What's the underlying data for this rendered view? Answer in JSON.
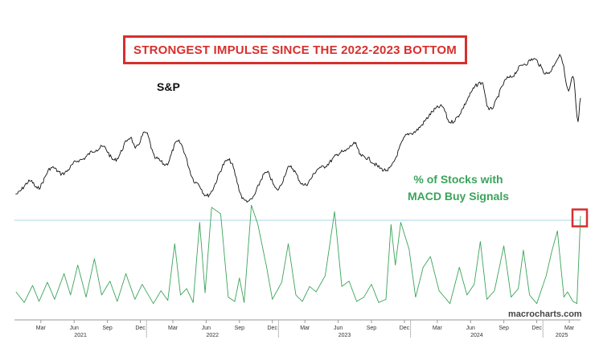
{
  "header": {
    "banner": "STRONGEST IMPULSE SINCE THE 2022-2023 BOTTOM",
    "sp_label": "S&P",
    "macd_label_line1": "% of Stocks with",
    "macd_label_line2": "MACD Buy Signals",
    "watermark": "macrocharts.com"
  },
  "colors": {
    "banner": "#d6302d",
    "sp_line": "#111111",
    "macd_line": "#3aa45a",
    "reference_line": "#a8d4ee",
    "highlight_box": "#d6302d"
  },
  "chart_data": [
    {
      "type": "line",
      "title": "S&P",
      "x_axis": "date",
      "xlim": [
        "2021-01-01",
        "2025-04-15"
      ],
      "ylim": [
        3550,
        6250
      ],
      "series": [
        {
          "name": "S&P",
          "points": [
            [
              "2021-01-04",
              3700
            ],
            [
              "2021-02-15",
              3930
            ],
            [
              "2021-03-05",
              3800
            ],
            [
              "2021-04-15",
              4170
            ],
            [
              "2021-05-12",
              4060
            ],
            [
              "2021-06-30",
              4300
            ],
            [
              "2021-08-15",
              4480
            ],
            [
              "2021-09-02",
              4540
            ],
            [
              "2021-10-04",
              4300
            ],
            [
              "2021-11-18",
              4700
            ],
            [
              "2021-12-01",
              4510
            ],
            [
              "2021-12-29",
              4790
            ],
            [
              "2022-01-27",
              4330
            ],
            [
              "2022-02-23",
              4220
            ],
            [
              "2022-03-29",
              4630
            ],
            [
              "2022-05-20",
              3900
            ],
            [
              "2022-06-16",
              3670
            ],
            [
              "2022-08-16",
              4300
            ],
            [
              "2022-09-30",
              3590
            ],
            [
              "2022-10-12",
              3580
            ],
            [
              "2022-11-30",
              4080
            ],
            [
              "2022-12-28",
              3780
            ],
            [
              "2023-02-02",
              4180
            ],
            [
              "2023-03-13",
              3860
            ],
            [
              "2023-04-28",
              4170
            ],
            [
              "2023-06-30",
              4450
            ],
            [
              "2023-07-31",
              4590
            ],
            [
              "2023-08-18",
              4370
            ],
            [
              "2023-10-27",
              4120
            ],
            [
              "2023-12-29",
              4770
            ],
            [
              "2024-03-28",
              5250
            ],
            [
              "2024-04-19",
              4970
            ],
            [
              "2024-07-16",
              5670
            ],
            [
              "2024-08-05",
              5190
            ],
            [
              "2024-09-30",
              5760
            ],
            [
              "2024-11-11",
              6000
            ],
            [
              "2024-12-06",
              6090
            ],
            [
              "2025-01-13",
              5830
            ],
            [
              "2025-02-19",
              6140
            ],
            [
              "2025-03-13",
              5520
            ],
            [
              "2025-03-25",
              5780
            ],
            [
              "2025-04-08",
              4980
            ],
            [
              "2025-04-15",
              5400
            ]
          ]
        }
      ]
    },
    {
      "type": "line",
      "title": "% of Stocks with MACD Buy Signals",
      "x_axis": "date",
      "xlim": [
        "2021-01-01",
        "2025-04-15"
      ],
      "ylim": [
        0,
        100
      ],
      "reference_line": 82,
      "series": [
        {
          "name": "% of Stocks with MACD Buy Signals",
          "points": [
            [
              "2021-01-05",
              15
            ],
            [
              "2021-01-28",
              5
            ],
            [
              "2021-02-20",
              21
            ],
            [
              "2021-03-10",
              6
            ],
            [
              "2021-04-02",
              24
            ],
            [
              "2021-04-22",
              8
            ],
            [
              "2021-05-18",
              32
            ],
            [
              "2021-06-05",
              12
            ],
            [
              "2021-06-25",
              40
            ],
            [
              "2021-07-18",
              10
            ],
            [
              "2021-08-10",
              46
            ],
            [
              "2021-08-30",
              12
            ],
            [
              "2021-09-22",
              25
            ],
            [
              "2021-10-12",
              6
            ],
            [
              "2021-11-05",
              32
            ],
            [
              "2021-11-30",
              8
            ],
            [
              "2021-12-20",
              22
            ],
            [
              "2022-01-20",
              4
            ],
            [
              "2022-02-10",
              16
            ],
            [
              "2022-03-01",
              7
            ],
            [
              "2022-03-20",
              60
            ],
            [
              "2022-04-05",
              12
            ],
            [
              "2022-04-22",
              18
            ],
            [
              "2022-05-10",
              5
            ],
            [
              "2022-05-28",
              80
            ],
            [
              "2022-06-12",
              14
            ],
            [
              "2022-06-30",
              94
            ],
            [
              "2022-07-25",
              88
            ],
            [
              "2022-08-15",
              10
            ],
            [
              "2022-09-02",
              6
            ],
            [
              "2022-09-15",
              28
            ],
            [
              "2022-09-28",
              5
            ],
            [
              "2022-10-18",
              96
            ],
            [
              "2022-11-05",
              78
            ],
            [
              "2022-11-28",
              40
            ],
            [
              "2022-12-15",
              8
            ],
            [
              "2023-01-10",
              24
            ],
            [
              "2023-01-28",
              60
            ],
            [
              "2023-02-18",
              12
            ],
            [
              "2023-03-08",
              6
            ],
            [
              "2023-03-28",
              20
            ],
            [
              "2023-04-15",
              15
            ],
            [
              "2023-05-10",
              30
            ],
            [
              "2023-06-05",
              90
            ],
            [
              "2023-06-25",
              20
            ],
            [
              "2023-07-15",
              25
            ],
            [
              "2023-08-05",
              6
            ],
            [
              "2023-08-25",
              10
            ],
            [
              "2023-09-15",
              22
            ],
            [
              "2023-10-05",
              5
            ],
            [
              "2023-10-25",
              8
            ],
            [
              "2023-11-08",
              78
            ],
            [
              "2023-11-20",
              40
            ],
            [
              "2023-12-05",
              80
            ],
            [
              "2023-12-28",
              55
            ],
            [
              "2024-01-15",
              10
            ],
            [
              "2024-02-05",
              38
            ],
            [
              "2024-02-25",
              48
            ],
            [
              "2024-03-20",
              16
            ],
            [
              "2024-04-19",
              4
            ],
            [
              "2024-05-15",
              38
            ],
            [
              "2024-06-05",
              12
            ],
            [
              "2024-06-25",
              22
            ],
            [
              "2024-07-12",
              62
            ],
            [
              "2024-07-30",
              8
            ],
            [
              "2024-08-20",
              16
            ],
            [
              "2024-09-15",
              58
            ],
            [
              "2024-10-05",
              10
            ],
            [
              "2024-10-25",
              18
            ],
            [
              "2024-11-08",
              54
            ],
            [
              "2024-11-25",
              12
            ],
            [
              "2024-12-15",
              4
            ],
            [
              "2025-01-10",
              30
            ],
            [
              "2025-01-25",
              52
            ],
            [
              "2025-02-10",
              72
            ],
            [
              "2025-02-28",
              10
            ],
            [
              "2025-03-10",
              15
            ],
            [
              "2025-03-25",
              6
            ],
            [
              "2025-04-05",
              4
            ],
            [
              "2025-04-15",
              86
            ]
          ]
        }
      ]
    }
  ],
  "axis": {
    "months": [
      "Mar",
      "Jun",
      "Sep",
      "Dec",
      "Mar",
      "Jun",
      "Sep",
      "Dec",
      "Mar",
      "Jun",
      "Sep",
      "Dec",
      "Mar",
      "Jun",
      "Sep",
      "Dec",
      "Mar"
    ],
    "years": [
      "2021",
      "2022",
      "2023",
      "2024",
      "2025"
    ]
  }
}
